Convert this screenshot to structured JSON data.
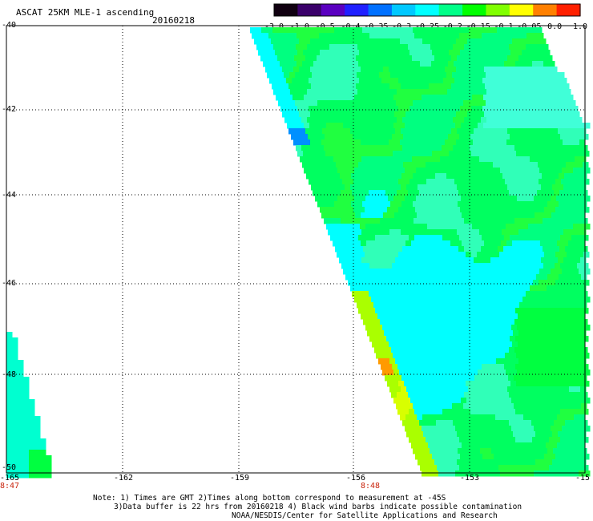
{
  "header": {
    "title": "ASCAT 25KM MLE-1 ascending",
    "date": "20160218"
  },
  "colorbar": {
    "ticks": [
      "-3.0",
      "-1.0",
      "-0.5",
      "-0.4",
      "-0.35",
      "-0.3",
      "-0.25",
      "-0.2",
      "-0.15",
      "-0.1",
      "-0.05",
      "0.0",
      "1.0"
    ],
    "colors": [
      "#100010",
      "#3a006a",
      "#5a00c0",
      "#2020ff",
      "#0070ff",
      "#00c8ff",
      "#00ffff",
      "#00ff88",
      "#00ff00",
      "#80ff00",
      "#ffff00",
      "#ff8000",
      "#ff2000"
    ]
  },
  "map": {
    "latitudes": [
      "-40",
      "-42",
      "-44",
      "-46",
      "-48",
      "-50"
    ],
    "longitudes": [
      "-165",
      "-162",
      "-159",
      "-156",
      "-153",
      "-15"
    ],
    "pass_times": [
      {
        "lon": "-165",
        "time": "8:47"
      },
      {
        "lon": "-156",
        "time": "8:48"
      }
    ]
  },
  "notes": {
    "line1": "Note: 1) Times are GMT 2)Times along bottom correspond to measurement at -45S",
    "line2": "3)Data buffer is 22 hrs from 20160218 4) Black wind barbs indicate possible contamination",
    "line3": "NOAA/NESDIS/Center for Satellite Applications and Research"
  }
}
